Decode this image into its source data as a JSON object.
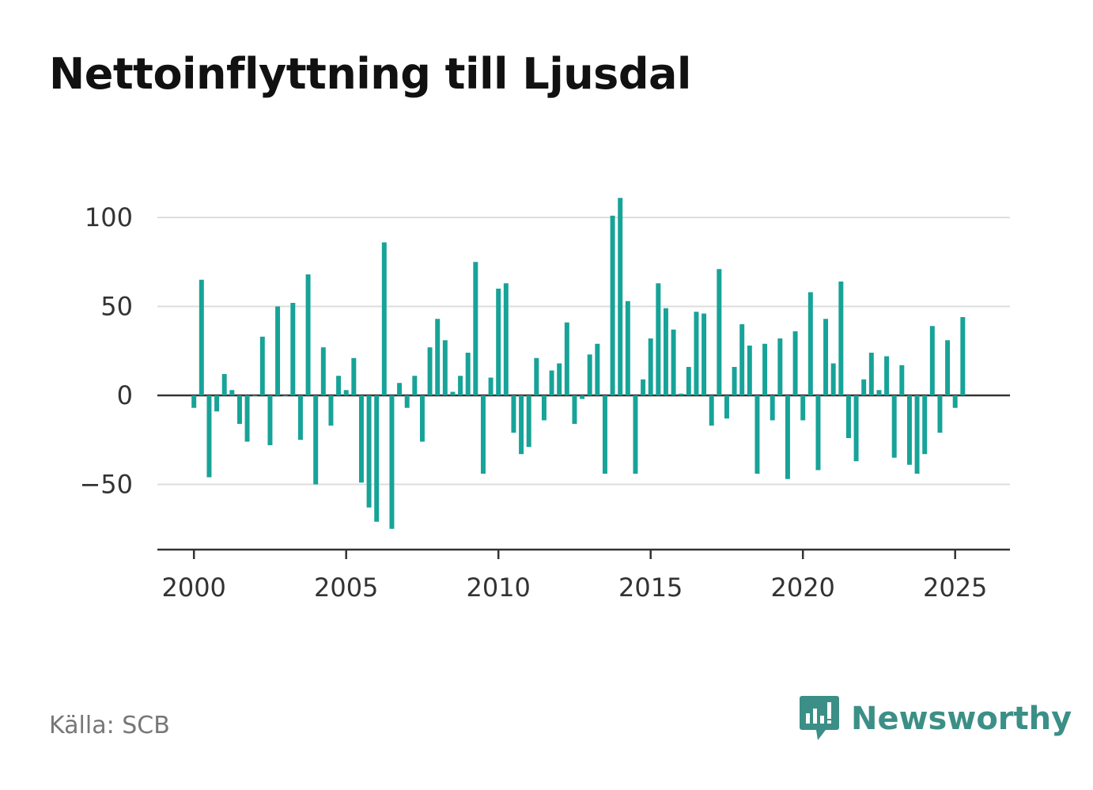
{
  "title": "Nettoinflyttning till Ljusdal",
  "source": "Källa: SCB",
  "brand": {
    "name": "Newsworthy",
    "icon": "newsworthy-logo-icon"
  },
  "colors": {
    "bar": "#17a398",
    "grid": "#dddddd",
    "zero_line": "#333333",
    "axis": "#333333"
  },
  "chart_data": {
    "type": "bar",
    "title": "Nettoinflyttning till Ljusdal",
    "xlabel": "",
    "ylabel": "",
    "x_start": 2000,
    "x_step": 0.25,
    "xlim": [
      1998.8,
      2026.8
    ],
    "ylim": [
      -87,
      100
    ],
    "yticks": [
      100,
      50,
      0,
      -50
    ],
    "ytick_labels": [
      "100",
      "50",
      "0",
      "−50"
    ],
    "xticks": [
      2000,
      2005,
      2010,
      2015,
      2020,
      2025
    ],
    "grid": true,
    "legend": "none",
    "values": [
      -7,
      65,
      -46,
      -9,
      12,
      3,
      -16,
      -26,
      0,
      33,
      -28,
      50,
      0,
      52,
      -25,
      68,
      -50,
      27,
      -17,
      11,
      3,
      21,
      -49,
      -63,
      -71,
      86,
      -75,
      7,
      -7,
      11,
      -26,
      27,
      43,
      31,
      2,
      11,
      24,
      75,
      -44,
      10,
      60,
      63,
      -21,
      -33,
      -29,
      21,
      -14,
      14,
      18,
      41,
      -16,
      -2,
      23,
      29,
      -44,
      101,
      111,
      53,
      -44,
      9,
      32,
      63,
      49,
      37,
      1,
      16,
      47,
      46,
      -17,
      71,
      -13,
      16,
      40,
      28,
      -44,
      29,
      -14,
      32,
      -47,
      36,
      -14,
      58,
      -42,
      43,
      18,
      64,
      -24,
      -37,
      9,
      24,
      3,
      22,
      -35,
      17,
      -39,
      -44,
      -33,
      39,
      -21,
      31,
      -7,
      44
    ]
  }
}
